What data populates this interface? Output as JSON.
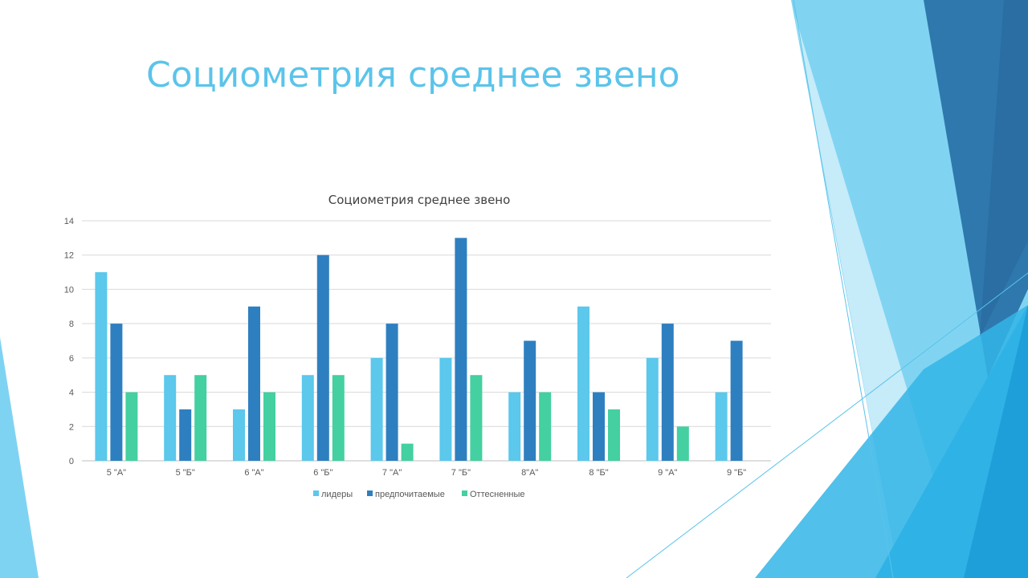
{
  "slide": {
    "title": "Социометрия среднее звено"
  },
  "colors": {
    "лидеры": "#5bc8ec",
    "предпочитаемые": "#2e7fc0",
    "Оттесненные": "#44d0a0",
    "grid": "#d9d9d9",
    "axis": "#bfbfbf"
  },
  "chart_data": {
    "type": "bar",
    "title": "Социометрия среднее звено",
    "xlabel": "",
    "ylabel": "",
    "ylim": [
      0,
      14
    ],
    "yticks": [
      0,
      2,
      4,
      6,
      8,
      10,
      12,
      14
    ],
    "grid": true,
    "legend_position": "bottom",
    "categories": [
      "5 \"А\"",
      "5 \"Б\"",
      "6 \"А\"",
      "6 \"Б\"",
      "7 \"А\"",
      "7 \"Б\"",
      "8\"А\"",
      "8 \"Б\"",
      "9 \"А\"",
      "9 \"Б\""
    ],
    "series": [
      {
        "name": "лидеры",
        "values": [
          11,
          5,
          3,
          5,
          6,
          6,
          4,
          9,
          6,
          4
        ]
      },
      {
        "name": "предпочитаемые",
        "values": [
          8,
          3,
          9,
          12,
          8,
          13,
          7,
          4,
          8,
          7
        ]
      },
      {
        "name": "Оттесненные",
        "values": [
          4,
          5,
          4,
          5,
          1,
          5,
          4,
          3,
          2,
          0
        ]
      }
    ]
  }
}
